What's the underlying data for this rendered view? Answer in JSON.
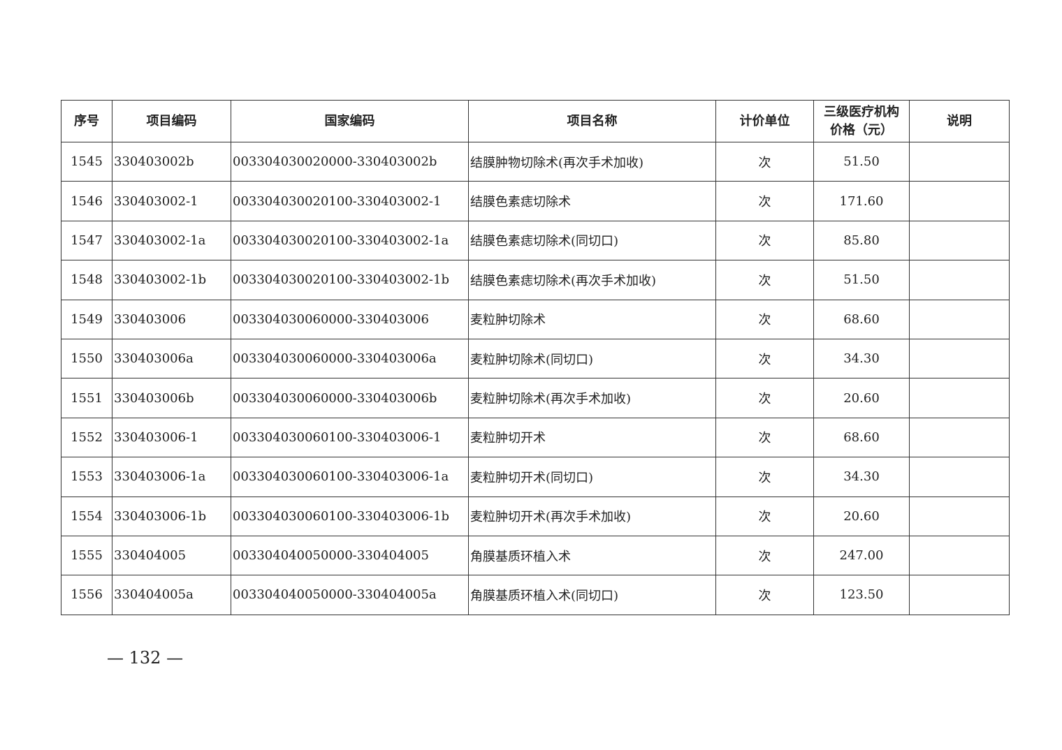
{
  "table": {
    "headers": [
      "序号",
      "项目编码",
      "国家编码",
      "项目名称",
      "计价单位",
      "三级医疗机构价格（元）",
      "说明"
    ],
    "header_price_line1": "三级医疗机构",
    "header_price_line2": "价格（元）",
    "rows": [
      [
        "1545",
        "330403002b",
        "003304030020000-330403002b",
        "结膜肿物切除术(再次手术加收)",
        "次",
        "51.50",
        ""
      ],
      [
        "1546",
        "330403002-1",
        "003304030020100-330403002-1",
        "结膜色素痣切除术",
        "次",
        "171.60",
        ""
      ],
      [
        "1547",
        "330403002-1a",
        "003304030020100-330403002-1a",
        "结膜色素痣切除术(同切口)",
        "次",
        "85.80",
        ""
      ],
      [
        "1548",
        "330403002-1b",
        "003304030020100-330403002-1b",
        "结膜色素痣切除术(再次手术加收)",
        "次",
        "51.50",
        ""
      ],
      [
        "1549",
        "330403006",
        "003304030060000-330403006",
        "麦粒肿切除术",
        "次",
        "68.60",
        ""
      ],
      [
        "1550",
        "330403006a",
        "003304030060000-330403006a",
        "麦粒肿切除术(同切口)",
        "次",
        "34.30",
        ""
      ],
      [
        "1551",
        "330403006b",
        "003304030060000-330403006b",
        "麦粒肿切除术(再次手术加收)",
        "次",
        "20.60",
        ""
      ],
      [
        "1552",
        "330403006-1",
        "003304030060100-330403006-1",
        "麦粒肿切开术",
        "次",
        "68.60",
        ""
      ],
      [
        "1553",
        "330403006-1a",
        "003304030060100-330403006-1a",
        "麦粒肿切开术(同切口)",
        "次",
        "34.30",
        ""
      ],
      [
        "1554",
        "330403006-1b",
        "003304030060100-330403006-1b",
        "麦粒肿切开术(再次手术加收)",
        "次",
        "20.60",
        ""
      ],
      [
        "1555",
        "330404005",
        "003304040050000-330404005",
        "角膜基质环植入术",
        "次",
        "247.00",
        ""
      ],
      [
        "1556",
        "330404005a",
        "003304040050000-330404005a",
        "角膜基质环植入术(同切口)",
        "次",
        "123.50",
        ""
      ]
    ]
  },
  "page_number": "— 132 —"
}
